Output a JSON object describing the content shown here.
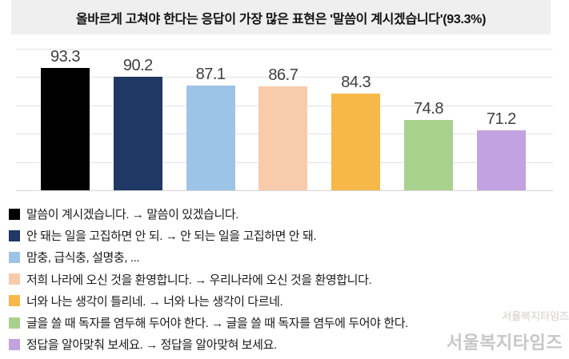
{
  "title": {
    "text": "올바르게 고쳐야 한다는 응답이 가장 많은 표현은 '말씀이 계시겠습니다'(93.3%)"
  },
  "chart_data": {
    "type": "bar",
    "title": "올바르게 고쳐야 한다는 응답이 가장 많은 표현은 '말씀이 계시겠습니다'(93.3%)",
    "categories": [
      "말씀이 계시겠습니다. → 말씀이 있겠습니다.",
      "안 돼는 일을 고집하면 안 되. → 안 되는 일을 고집하면 안 돼.",
      "맘충, 급식충, 설명충, ...",
      "저희 나라에 오신 것을 환영합니다. → 우리나라에 오신 것을 환영합니다.",
      "너와 나는 생각이 틀리네. → 너와 나는 생각이 다르네.",
      "글을 쓸 때 독자를 염두해 두어야 한다. → 글을 쓸 때 독자를 염두에 두어야 한다.",
      "정답을 알아맞춰 보세요. → 정답을 알아맞혀 보세요."
    ],
    "values": [
      93.3,
      90.2,
      87.1,
      86.7,
      84.3,
      74.8,
      71.2
    ],
    "value_labels": [
      "93.3",
      "90.2",
      "87.1",
      "86.7",
      "84.3",
      "74.8",
      "71.2"
    ],
    "bar_colors": [
      "#000000",
      "#1f3864",
      "#9dc3e6",
      "#f8cbad",
      "#f7b84a",
      "#a9d18e",
      "#c3a2e1"
    ],
    "xlabel": "",
    "ylabel": "",
    "ylim": [
      50,
      100
    ],
    "gridline_step": 10,
    "grid": "horizontal",
    "legend_position": "bottom"
  },
  "legend": {
    "items": [
      {
        "color": "#000000",
        "label": "말씀이 계시겠습니다. → 말씀이 있겠습니다."
      },
      {
        "color": "#1f3864",
        "label": "안 돼는 일을 고집하면 안 되. → 안 되는 일을 고집하면 안 돼."
      },
      {
        "color": "#9dc3e6",
        "label": "맘충, 급식충, 설명충, ..."
      },
      {
        "color": "#f8cbad",
        "label": "저희 나라에 오신 것을 환영합니다. → 우리나라에 오신 것을 환영합니다."
      },
      {
        "color": "#f7b84a",
        "label": "너와 나는 생각이 틀리네. → 너와 나는 생각이 다르네."
      },
      {
        "color": "#a9d18e",
        "label": "글을 쓸 때 독자를 염두해 두어야 한다. → 글을 쓸 때 독자를 염두에 두어야 한다."
      },
      {
        "color": "#c3a2e1",
        "label": "정답을 알아맞춰 보세요. → 정답을 알아맞혀 보세요."
      }
    ]
  },
  "watermark": {
    "text": "서울복지타임즈",
    "ghost_text": "서울복지타임즈"
  },
  "colors": {
    "title_bg": "#efefef",
    "gridline": "#e3e3e3",
    "baseline": "#d6d6d6",
    "value_label": "#404040",
    "legend_text": "#1a1a1a",
    "watermark": "#c7c7c7"
  }
}
